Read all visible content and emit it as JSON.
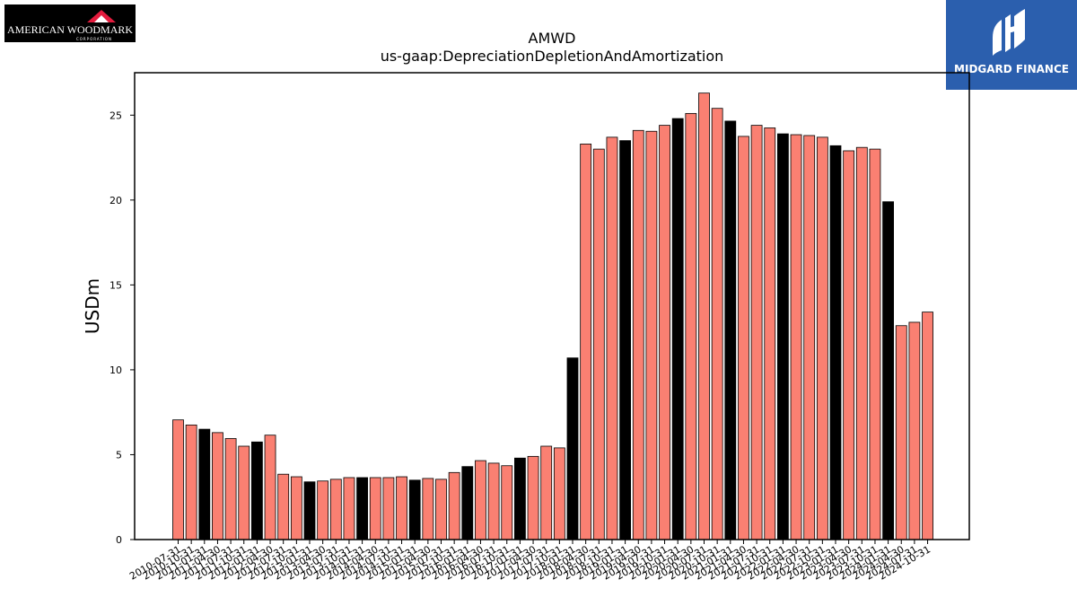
{
  "logos": {
    "left_text": "AMERICAN WOODMARK",
    "left_subtext": "CORPORATION",
    "right_text": "MIDGARD FINANCE"
  },
  "colors": {
    "annual": "#000000",
    "quarterly": "#fa8072",
    "right_logo_bg": "#2b5fae"
  },
  "chart_data": {
    "type": "bar",
    "title": "AMWD",
    "subtitle": "us-gaap:DepreciationDepletionAndAmortization",
    "xlabel": "",
    "ylabel": "USDm",
    "ylim": [
      0,
      27.5
    ],
    "yticks": [
      0,
      5,
      10,
      15,
      20,
      25
    ],
    "grid": false,
    "categories": [
      "2010-07-31",
      "2010-10-31",
      "2011-01-31",
      "2011-04-30",
      "2011-07-31",
      "2011-10-31",
      "2012-01-31",
      "2012-04-30",
      "2012-07-31",
      "2012-10-31",
      "2013-01-31",
      "2013-04-30",
      "2013-07-31",
      "2013-10-31",
      "2014-01-31",
      "2014-04-30",
      "2014-07-31",
      "2014-10-31",
      "2015-01-31",
      "2015-04-30",
      "2015-07-31",
      "2015-10-31",
      "2016-01-31",
      "2016-04-30",
      "2016-07-31",
      "2016-10-31",
      "2017-01-31",
      "2017-04-30",
      "2017-07-31",
      "2017-10-31",
      "2018-01-31",
      "2018-04-30",
      "2018-07-31",
      "2018-10-31",
      "2019-01-31",
      "2019-04-30",
      "2019-07-31",
      "2019-10-31",
      "2020-01-31",
      "2020-04-30",
      "2020-07-31",
      "2020-10-31",
      "2021-01-31",
      "2021-04-30",
      "2021-07-31",
      "2021-10-31",
      "2022-01-31",
      "2022-04-30",
      "2022-07-31",
      "2022-10-31",
      "2023-01-31",
      "2023-04-30",
      "2023-07-31",
      "2023-10-31",
      "2024-01-31",
      "2024-04-30",
      "2024-07-31",
      "2024-10-31"
    ],
    "values": [
      7.05,
      6.75,
      6.5,
      6.3,
      5.95,
      5.5,
      5.75,
      6.15,
      3.85,
      3.7,
      3.4,
      3.45,
      3.55,
      3.65,
      3.65,
      3.65,
      3.65,
      3.7,
      3.5,
      3.6,
      3.55,
      3.95,
      4.3,
      4.65,
      4.5,
      4.35,
      4.8,
      4.9,
      5.5,
      5.4,
      10.7,
      23.3,
      23.0,
      23.7,
      23.5,
      24.1,
      24.05,
      24.4,
      24.8,
      25.1,
      26.3,
      25.4,
      24.65,
      23.75,
      24.4,
      24.25,
      23.9,
      23.85,
      23.8,
      23.7,
      23.2,
      22.9,
      23.1,
      23.0,
      19.9,
      12.6,
      12.8,
      13.4
    ],
    "bar_types": [
      "q",
      "q",
      "a",
      "q",
      "q",
      "q",
      "a",
      "q",
      "q",
      "q",
      "a",
      "q",
      "q",
      "q",
      "a",
      "q",
      "q",
      "q",
      "a",
      "q",
      "q",
      "q",
      "a",
      "q",
      "q",
      "q",
      "a",
      "q",
      "q",
      "q",
      "a",
      "q",
      "q",
      "q",
      "a",
      "q",
      "q",
      "q",
      "a",
      "q",
      "q",
      "q",
      "a",
      "q",
      "q",
      "q",
      "a",
      "q",
      "q",
      "q",
      "a",
      "q",
      "q",
      "q",
      "a",
      "q",
      "q",
      "q"
    ]
  }
}
